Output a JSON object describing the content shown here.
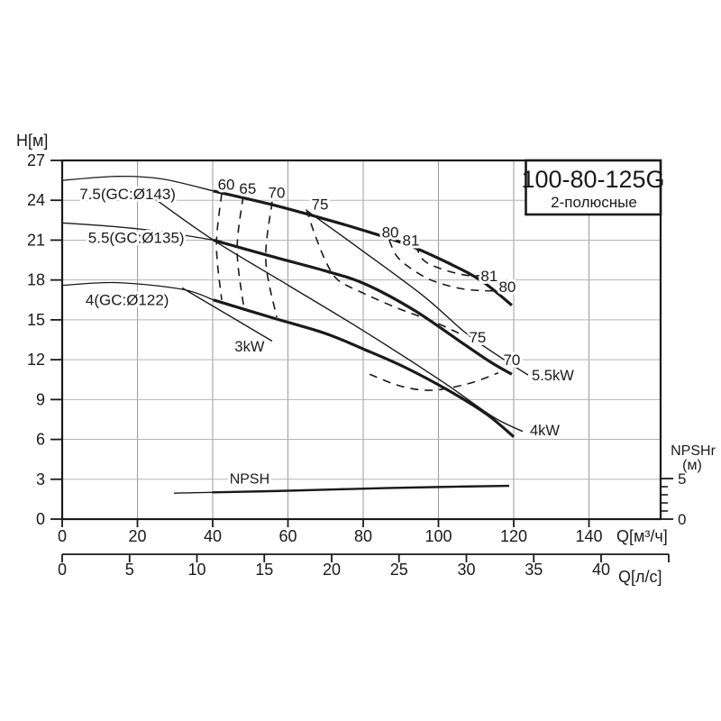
{
  "title_box": {
    "model": "100-80-125G",
    "subtitle": "2-полюсные"
  },
  "chart_data": {
    "type": "line",
    "title": "100-80-125G",
    "subtitle": "2-полюсные",
    "axes": {
      "y": {
        "label": "H[м]",
        "ticks": [
          27,
          24,
          21,
          18,
          15,
          12,
          9,
          6,
          3,
          0
        ],
        "min": 0,
        "max": 27
      },
      "x": {
        "label": "Q[м³/ч]",
        "ticks": [
          0,
          20,
          40,
          60,
          80,
          100,
          120,
          140
        ],
        "min": 0,
        "max": 140
      },
      "x2": {
        "label": "Q[л/с]",
        "ticks": [
          0,
          5,
          10,
          15,
          20,
          25,
          30,
          35,
          40
        ],
        "min": 0,
        "max": 40
      },
      "npshr": {
        "label": "NPSHr",
        "unit": "(м)",
        "major_ticks": [
          5,
          0
        ],
        "minor_ticks": [
          1,
          2,
          3,
          4
        ],
        "min": 0,
        "max": 5
      }
    },
    "series": [
      {
        "name": "7.5(GC:Ø143)",
        "role": "pump-curve",
        "thin": [
          [
            0,
            25.5
          ],
          [
            14.6,
            25.8
          ],
          [
            26.6,
            25.6
          ],
          [
            40.2,
            24.7
          ]
        ],
        "points": [
          [
            40.2,
            24.7
          ],
          [
            55.3,
            23.7
          ],
          [
            69.7,
            22.6
          ],
          [
            79.3,
            21.8
          ],
          [
            91.3,
            20.7
          ],
          [
            103.2,
            19.2
          ],
          [
            111.6,
            17.9
          ],
          [
            119.5,
            16.1
          ]
        ]
      },
      {
        "name": "5.5(GC:Ø135)",
        "role": "pump-curve",
        "thin": [
          [
            0,
            22.3
          ],
          [
            14.6,
            22.0
          ],
          [
            27.3,
            21.6
          ],
          [
            40.2,
            21.0
          ]
        ],
        "points": [
          [
            40.2,
            21.0
          ],
          [
            55.3,
            19.8
          ],
          [
            69.7,
            18.7
          ],
          [
            80.5,
            17.7
          ],
          [
            93.7,
            15.7
          ],
          [
            106.1,
            13.3
          ],
          [
            114.0,
            11.8
          ],
          [
            119.5,
            10.9
          ]
        ]
      },
      {
        "name": "4(GC:Ø122)",
        "role": "pump-curve",
        "thin": [
          [
            0,
            17.6
          ],
          [
            14.6,
            17.8
          ],
          [
            31.9,
            17.3
          ],
          [
            40.2,
            16.5
          ]
        ],
        "points": [
          [
            40.2,
            16.5
          ],
          [
            55.3,
            15.2
          ],
          [
            69.7,
            14.0
          ],
          [
            80.5,
            12.75
          ],
          [
            91.3,
            11.4
          ],
          [
            103.2,
            9.6
          ],
          [
            112.8,
            7.9
          ],
          [
            120,
            6.2
          ]
        ]
      },
      {
        "name": "3kW",
        "role": "power-line",
        "points": [
          [
            31.9,
            17.4
          ],
          [
            55.8,
            13.4
          ]
        ]
      },
      {
        "name": "4kW",
        "role": "power-line",
        "points": [
          [
            23.7,
            24.3
          ],
          [
            40.2,
            21.0
          ],
          [
            60.1,
            17.6
          ],
          [
            80.5,
            14.1
          ],
          [
            100.8,
            10.4
          ],
          [
            114.5,
            7.7
          ],
          [
            122.4,
            6.6
          ]
        ]
      },
      {
        "name": "5.5kW",
        "role": "power-line",
        "points": [
          [
            65.1,
            23.2
          ],
          [
            79.3,
            20.3
          ],
          [
            96.0,
            16.8
          ],
          [
            107.3,
            14.0
          ],
          [
            116.9,
            12.1
          ],
          [
            123.8,
            10.85
          ]
        ]
      },
      {
        "name": "60",
        "role": "efficiency",
        "points": [
          [
            42.4,
            24.5
          ],
          [
            41.0,
            20.6
          ],
          [
            42.4,
            16.5
          ]
        ]
      },
      {
        "name": "65",
        "role": "efficiency",
        "points": [
          [
            48.1,
            24.3
          ],
          [
            46.5,
            20.2
          ],
          [
            48.4,
            15.7
          ]
        ]
      },
      {
        "name": "70",
        "role": "efficiency",
        "points": [
          [
            55.8,
            23.9
          ],
          [
            54.1,
            19.5
          ],
          [
            57.0,
            15.2
          ]
        ]
      },
      {
        "name": "75",
        "role": "efficiency",
        "points": [
          [
            64.9,
            23.3
          ],
          [
            67.3,
            21.3
          ],
          [
            70.4,
            19.2
          ],
          [
            73.3,
            18.0
          ],
          [
            79.3,
            17.1
          ],
          [
            88.9,
            15.9
          ],
          [
            98.4,
            14.9
          ],
          [
            106.1,
            13.9
          ]
        ]
      },
      {
        "name": "70",
        "role": "efficiency",
        "points": [
          [
            81.7,
            10.9
          ],
          [
            90.1,
            10.0
          ],
          [
            98.4,
            9.7
          ],
          [
            108.0,
            10.2
          ],
          [
            115.9,
            11.0
          ]
        ]
      },
      {
        "name": "80",
        "role": "efficiency",
        "points": [
          [
            86.9,
            21.0
          ],
          [
            88.9,
            19.8
          ],
          [
            92.5,
            18.9
          ],
          [
            98.0,
            18.0
          ],
          [
            105.1,
            17.4
          ],
          [
            111.6,
            17.2
          ],
          [
            117.6,
            17.2
          ]
        ]
      },
      {
        "name": "81",
        "role": "efficiency",
        "points": [
          [
            93.9,
            20.6
          ],
          [
            96.0,
            19.5
          ],
          [
            100.1,
            18.9
          ],
          [
            104.9,
            18.5
          ],
          [
            109.2,
            18.3
          ],
          [
            112.1,
            18.4
          ]
        ]
      },
      {
        "name": "NPSH",
        "role": "npsh",
        "scale": "npshr",
        "thin": [
          [
            29.7,
            3.2
          ],
          [
            39.8,
            3.3
          ]
        ],
        "points": [
          [
            39.8,
            3.3
          ],
          [
            60.1,
            3.5
          ],
          [
            79.3,
            3.75
          ],
          [
            98.4,
            3.95
          ],
          [
            118.8,
            4.1
          ]
        ]
      }
    ],
    "labels": [
      {
        "text": "7.5(GC:Ø143)",
        "q": 4.6,
        "h": 24.5,
        "anchor": "start",
        "fs": 17
      },
      {
        "text": "5.5(GC:Ø135)",
        "q": 6.9,
        "h": 21.2,
        "anchor": "start",
        "fs": 17
      },
      {
        "text": "4(GC:Ø122)",
        "q": 6.2,
        "h": 16.5,
        "anchor": "start",
        "fs": 17
      },
      {
        "text": "60",
        "q": 43.6,
        "h": 25.2,
        "anchor": "middle",
        "fs": 17
      },
      {
        "text": "65",
        "q": 49.3,
        "h": 24.9,
        "anchor": "middle",
        "fs": 17
      },
      {
        "text": "70",
        "q": 57.0,
        "h": 24.6,
        "anchor": "middle",
        "fs": 17
      },
      {
        "text": "75",
        "q": 68.5,
        "h": 23.7,
        "anchor": "middle",
        "fs": 17
      },
      {
        "text": "80",
        "q": 87.2,
        "h": 21.6,
        "anchor": "middle",
        "fs": 17
      },
      {
        "text": "81",
        "q": 92.7,
        "h": 21.0,
        "anchor": "middle",
        "fs": 17
      },
      {
        "text": "81",
        "q": 113.5,
        "h": 18.3,
        "anchor": "middle",
        "fs": 17
      },
      {
        "text": "80",
        "q": 118.3,
        "h": 17.5,
        "anchor": "middle",
        "fs": 17
      },
      {
        "text": "75",
        "q": 110.4,
        "h": 13.7,
        "anchor": "middle",
        "fs": 17
      },
      {
        "text": "70",
        "q": 119.5,
        "h": 12.0,
        "anchor": "middle",
        "fs": 17
      },
      {
        "text": "3kW",
        "q": 49.8,
        "h": 13.0,
        "anchor": "middle",
        "fs": 16.5
      },
      {
        "text": "5.5kW",
        "q": 124.8,
        "h": 10.85,
        "anchor": "start",
        "fs": 16.5
      },
      {
        "text": "4kW",
        "q": 124.3,
        "h": 6.7,
        "anchor": "start",
        "fs": 16.5
      },
      {
        "text": "NPSH",
        "q": 49.8,
        "h": 3.05,
        "anchor": "middle",
        "fs": 16
      }
    ]
  }
}
